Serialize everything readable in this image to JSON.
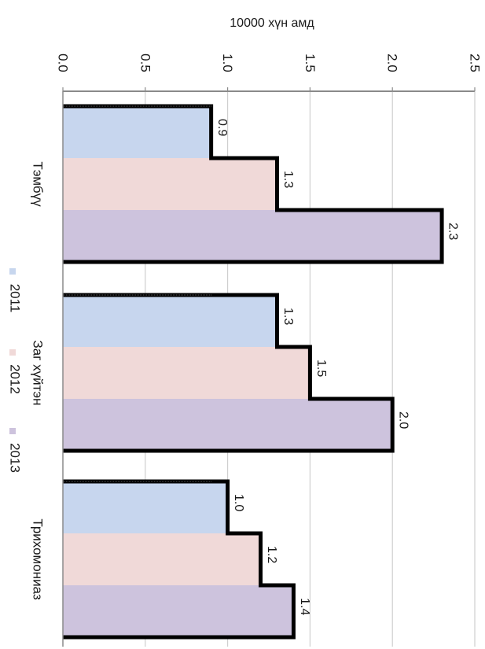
{
  "chart_data": {
    "type": "bar",
    "orientation": "horizontal",
    "ylabel": "10000 хүн амд",
    "xlim": [
      0,
      2.5
    ],
    "x_ticks": [
      "0.0",
      "0.5",
      "1.0",
      "1.5",
      "2.0",
      "2.5"
    ],
    "grid": true,
    "legend_position": "left",
    "categories": [
      "Тэмбүү",
      "Заг хүйтэн",
      "Трихомониаз"
    ],
    "series": [
      {
        "name": "2011",
        "color": "#c7d6ee",
        "values": [
          0.9,
          1.3,
          1.0
        ],
        "labels": [
          "0.9",
          "1.3",
          "1.0"
        ]
      },
      {
        "name": "2012",
        "color": "#f0d9d8",
        "values": [
          1.3,
          1.5,
          1.2
        ],
        "labels": [
          "1.3",
          "1.5",
          "1.2"
        ]
      },
      {
        "name": "2013",
        "color": "#cdc3dd",
        "values": [
          2.3,
          2.0,
          1.4
        ],
        "labels": [
          "2.3",
          "2.0",
          "1.4"
        ]
      }
    ]
  }
}
